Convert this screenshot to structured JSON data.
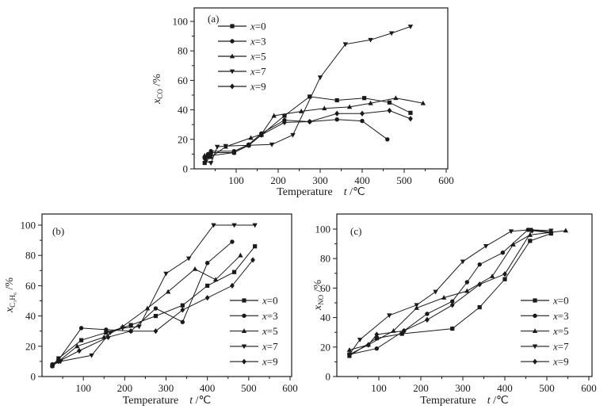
{
  "figure": {
    "background": "#ffffff",
    "ink": "#1a1a1a",
    "legend_line_color": "#444444"
  },
  "chart_data": [
    {
      "id": "a",
      "type": "line",
      "panel_label": "(a)",
      "xlabel_text": "Temperature",
      "xlabel_var": "t",
      "xlabel_unit": "/℃",
      "ylabel_var": "x",
      "ylabel_sub": "CO",
      "ylabel_unit": "/%",
      "xlim": [
        0,
        600
      ],
      "ylim": [
        0,
        100
      ],
      "xticks": [
        100,
        200,
        300,
        400,
        500,
        600
      ],
      "yticks": [
        0,
        20,
        40,
        60,
        80,
        100
      ],
      "xminor": [
        50,
        150,
        250,
        350,
        450,
        550
      ],
      "yminor": [
        10,
        30,
        50,
        70,
        90
      ],
      "grid": false,
      "legend_position": "top-left-inside",
      "series": [
        {
          "name": "x=0",
          "marker": "square",
          "points": [
            [
              25,
              4
            ],
            [
              32,
              8
            ],
            [
              40,
              11
            ],
            [
              95,
              11
            ],
            [
              130,
              16
            ],
            [
              160,
              23
            ],
            [
              215,
              36
            ],
            [
              275,
              49
            ],
            [
              340,
              46.5
            ],
            [
              405,
              48
            ],
            [
              465,
              45
            ],
            [
              515,
              38
            ]
          ]
        },
        {
          "name": "x=3",
          "marker": "circle",
          "points": [
            [
              25,
              8
            ],
            [
              33,
              10
            ],
            [
              40,
              12
            ],
            [
              95,
              12
            ],
            [
              130,
              16.5
            ],
            [
              160,
              24
            ],
            [
              215,
              33
            ],
            [
              275,
              32
            ],
            [
              340,
              33.5
            ],
            [
              400,
              32.5
            ],
            [
              460,
              20
            ]
          ]
        },
        {
          "name": "x=5",
          "marker": "triangle-up",
          "points": [
            [
              25,
              9
            ],
            [
              40,
              8
            ],
            [
              75,
              15
            ],
            [
              135,
              21
            ],
            [
              160,
              23.5
            ],
            [
              190,
              36
            ],
            [
              255,
              39
            ],
            [
              310,
              41
            ],
            [
              370,
              42
            ],
            [
              420,
              44.5
            ],
            [
              480,
              48
            ],
            [
              545,
              44.5
            ]
          ]
        },
        {
          "name": "x=7",
          "marker": "triangle-down",
          "points": [
            [
              28,
              5
            ],
            [
              40,
              4
            ],
            [
              55,
              15
            ],
            [
              75,
              15.5
            ],
            [
              130,
              16
            ],
            [
              185,
              16.5
            ],
            [
              235,
              23
            ],
            [
              300,
              62
            ],
            [
              360,
              84.5
            ],
            [
              420,
              87.5
            ],
            [
              470,
              92
            ],
            [
              515,
              96.5
            ]
          ]
        },
        {
          "name": "x=9",
          "marker": "diamond",
          "points": [
            [
              25,
              7
            ],
            [
              40,
              9
            ],
            [
              95,
              11
            ],
            [
              130,
              16
            ],
            [
              160,
              23
            ],
            [
              215,
              31.5
            ],
            [
              275,
              32
            ],
            [
              340,
              37.5
            ],
            [
              400,
              37.5
            ],
            [
              465,
              39.5
            ],
            [
              515,
              34
            ]
          ]
        }
      ]
    },
    {
      "id": "b",
      "type": "line",
      "panel_label": "(b)",
      "xlabel_text": "Temperature",
      "xlabel_var": "t",
      "xlabel_unit": "/℃",
      "ylabel_var": "x",
      "ylabel_sub": "C3H6",
      "ylabel_unit": "/%",
      "xlim": [
        0,
        600
      ],
      "ylim": [
        0,
        100
      ],
      "xticks": [
        100,
        200,
        300,
        400,
        500,
        600
      ],
      "yticks": [
        0,
        20,
        40,
        60,
        80,
        100
      ],
      "xminor": [
        50,
        150,
        250,
        350,
        450,
        550
      ],
      "yminor": [
        10,
        30,
        50,
        70,
        90
      ],
      "grid": false,
      "legend_position": "right-middle-inside",
      "series": [
        {
          "name": "x=0",
          "marker": "square",
          "points": [
            [
              25,
              7
            ],
            [
              40,
              12
            ],
            [
              95,
              24
            ],
            [
              155,
              29
            ],
            [
              215,
              34
            ],
            [
              275,
              40
            ],
            [
              340,
              47
            ],
            [
              400,
              60
            ],
            [
              465,
              69
            ],
            [
              515,
              86
            ]
          ]
        },
        {
          "name": "x=3",
          "marker": "circle",
          "points": [
            [
              25,
              8
            ],
            [
              40,
              11
            ],
            [
              95,
              32
            ],
            [
              155,
              31
            ],
            [
              215,
              30
            ],
            [
              275,
              45
            ],
            [
              340,
              36
            ],
            [
              400,
              75
            ],
            [
              460,
              89
            ]
          ]
        },
        {
          "name": "x=5",
          "marker": "triangle-up",
          "points": [
            [
              25,
              8
            ],
            [
              40,
              10
            ],
            [
              85,
              20
            ],
            [
              150,
              26
            ],
            [
              195,
              33
            ],
            [
              255,
              45
            ],
            [
              305,
              56
            ],
            [
              370,
              71
            ],
            [
              420,
              64
            ],
            [
              480,
              80
            ]
          ]
        },
        {
          "name": "x=7",
          "marker": "triangle-down",
          "points": [
            [
              28,
              8
            ],
            [
              45,
              10
            ],
            [
              120,
              14
            ],
            [
              165,
              29
            ],
            [
              195,
              32
            ],
            [
              235,
              33
            ],
            [
              300,
              68
            ],
            [
              355,
              78
            ],
            [
              415,
              100
            ],
            [
              465,
              100
            ],
            [
              515,
              100
            ]
          ]
        },
        {
          "name": "x=9",
          "marker": "diamond",
          "points": [
            [
              25,
              7
            ],
            [
              40,
              10
            ],
            [
              90,
              17
            ],
            [
              160,
              26
            ],
            [
              215,
              30
            ],
            [
              275,
              30
            ],
            [
              340,
              44
            ],
            [
              400,
              52
            ],
            [
              460,
              60
            ],
            [
              510,
              77
            ]
          ]
        }
      ]
    },
    {
      "id": "c",
      "type": "line",
      "panel_label": "(c)",
      "xlabel_text": "Temperature",
      "xlabel_var": "t",
      "xlabel_unit": "/℃",
      "ylabel_var": "x",
      "ylabel_sub": "NO",
      "ylabel_unit": "/%",
      "xlim": [
        0,
        600
      ],
      "ylim": [
        0,
        100
      ],
      "xticks": [
        100,
        200,
        300,
        400,
        500,
        600
      ],
      "yticks": [
        0,
        20,
        40,
        60,
        80,
        100
      ],
      "xminor": [
        50,
        150,
        250,
        350,
        450,
        550
      ],
      "yminor": [
        10,
        30,
        50,
        70,
        90
      ],
      "grid": false,
      "legend_position": "right-middle-inside",
      "series": [
        {
          "name": "x=0",
          "marker": "square",
          "points": [
            [
              30,
              14
            ],
            [
              95,
              26
            ],
            [
              155,
              29
            ],
            [
              275,
              32.5
            ],
            [
              340,
              47
            ],
            [
              400,
              66
            ],
            [
              460,
              92
            ],
            [
              510,
              97
            ]
          ]
        },
        {
          "name": "x=3",
          "marker": "circle",
          "points": [
            [
              30,
              15
            ],
            [
              95,
              19
            ],
            [
              160,
              31
            ],
            [
              215,
              42.5
            ],
            [
              275,
              51
            ],
            [
              310,
              64
            ],
            [
              340,
              76
            ],
            [
              395,
              84
            ],
            [
              455,
              99.5
            ],
            [
              510,
              98
            ]
          ]
        },
        {
          "name": "x=5",
          "marker": "triangle-up",
          "points": [
            [
              30,
              18
            ],
            [
              75,
              21.5
            ],
            [
              135,
              31
            ],
            [
              190,
              46.5
            ],
            [
              255,
              53.5
            ],
            [
              310,
              58
            ],
            [
              370,
              68
            ],
            [
              420,
              89.5
            ],
            [
              460,
              96
            ],
            [
              545,
              99
            ]
          ]
        },
        {
          "name": "x=7",
          "marker": "triangle-down",
          "points": [
            [
              30,
              15
            ],
            [
              55,
              25
            ],
            [
              125,
              41.5
            ],
            [
              190,
              48.5
            ],
            [
              235,
              57.5
            ],
            [
              300,
              78
            ],
            [
              355,
              88.5
            ],
            [
              415,
              98.5
            ],
            [
              460,
              99.5
            ],
            [
              510,
              99
            ]
          ]
        },
        {
          "name": "x=9",
          "marker": "diamond",
          "points": [
            [
              30,
              15
            ],
            [
              75,
              21.5
            ],
            [
              95,
              28.5
            ],
            [
              160,
              31
            ],
            [
              215,
              38.5
            ],
            [
              275,
              48.5
            ],
            [
              340,
              62.5
            ],
            [
              400,
              69.5
            ],
            [
              465,
              99
            ],
            [
              510,
              97.5
            ]
          ]
        }
      ]
    }
  ]
}
